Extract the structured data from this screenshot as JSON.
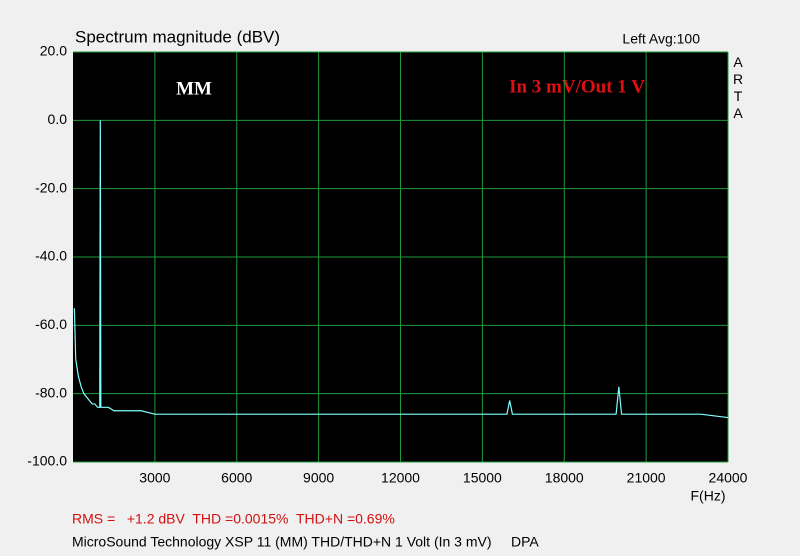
{
  "chart_data": {
    "type": "line",
    "title": "Spectrum magnitude (dBV)",
    "channel_info": "Left  Avg:100",
    "watermark": "ARTA",
    "annotations": [
      "MM",
      "In 3 mV/Out 1 V"
    ],
    "xlabel": "F(Hz)",
    "footer_stats": "RMS =   +1.2 dBV  THD =0.0015%  THD+N =0.69%",
    "footer_caption": "MicroSound Technology XSP 11 (MM) THD/THD+N 1 Volt (In 3 mV)     DPA",
    "x": [
      50,
      100,
      200,
      300,
      400,
      500,
      600,
      700,
      800,
      900,
      980,
      1000,
      1020,
      1100,
      1300,
      1500,
      2000,
      2500,
      3000,
      4000,
      5000,
      6000,
      7000,
      8000,
      9000,
      10000,
      11000,
      12000,
      13000,
      14000,
      15000,
      15900,
      16000,
      16100,
      17000,
      18000,
      19000,
      19900,
      20000,
      20100,
      21000,
      22000,
      23000,
      24000
    ],
    "series": [
      {
        "color": "#7fffff",
        "values": [
          -55,
          -70,
          -75,
          -78,
          -80,
          -81,
          -82,
          -83,
          -83,
          -84,
          -84,
          0,
          -84,
          -84,
          -84,
          -85,
          -85,
          -85,
          -86,
          -86,
          -86,
          -86,
          -86,
          -86,
          -86,
          -86,
          -86,
          -86,
          -86,
          -86,
          -86,
          -86,
          -82,
          -86,
          -86,
          -86,
          -86,
          -86,
          -78,
          -86,
          -86,
          -86,
          -86,
          -87
        ]
      }
    ],
    "xlim": [
      0,
      24000
    ],
    "xticks": [
      3000,
      6000,
      9000,
      12000,
      15000,
      18000,
      21000,
      24000
    ],
    "ylim": [
      -100,
      20
    ],
    "yticks": [
      {
        "value": -100,
        "label": "-100.0"
      },
      {
        "value": -80,
        "label": "-80.0"
      },
      {
        "value": -60,
        "label": "-60.0"
      },
      {
        "value": -40,
        "label": "-40.0"
      },
      {
        "value": -20,
        "label": "-20.0"
      },
      {
        "value": 0,
        "label": "0.0"
      },
      {
        "value": 20,
        "label": "20.0"
      }
    ],
    "grid": true
  }
}
